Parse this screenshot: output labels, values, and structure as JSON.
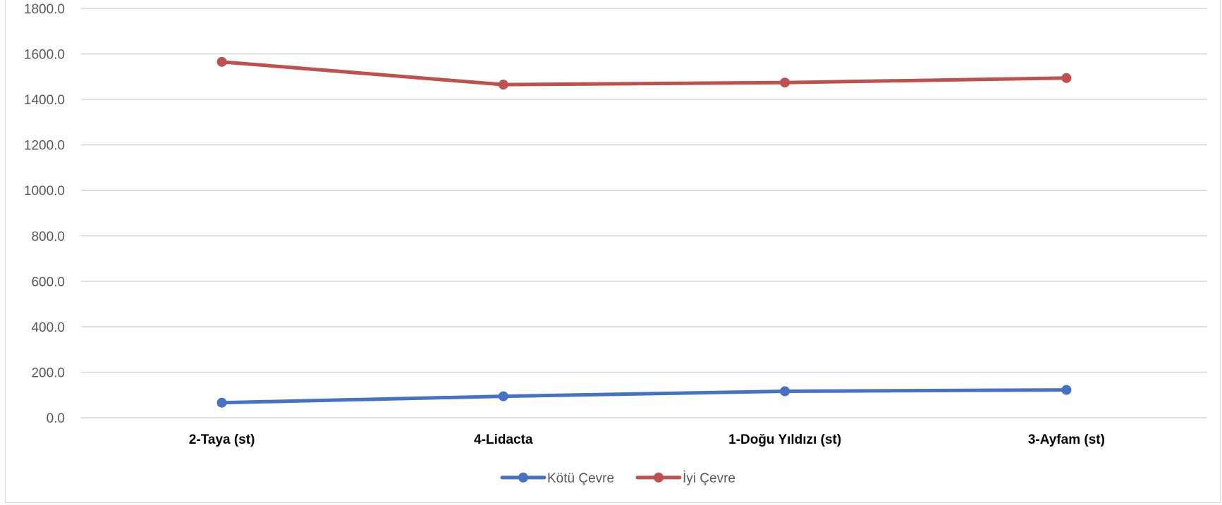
{
  "chart_data": {
    "type": "line",
    "categories": [
      "2-Taya (st)",
      "4-Lidacta",
      "1-Doğu Yıldızı (st)",
      "3-Ayfam (st)"
    ],
    "series": [
      {
        "name": "Kötü Çevre",
        "color": "#4472c4",
        "values": [
          66.0,
          94.0,
          116.0,
          122.0
        ]
      },
      {
        "name": "İyi Çevre",
        "color": "#c0504d",
        "values": [
          1565.0,
          1465.0,
          1474.0,
          1494.0
        ]
      }
    ],
    "ylim": [
      0,
      1800
    ],
    "yticks": [
      "0.0",
      "200.0",
      "400.0",
      "600.0",
      "800.0",
      "1000.0",
      "1200.0",
      "1400.0",
      "1600.0",
      "1800.0"
    ],
    "grid": true,
    "legend_position": "bottom",
    "title": "",
    "xlabel": "",
    "ylabel": ""
  }
}
